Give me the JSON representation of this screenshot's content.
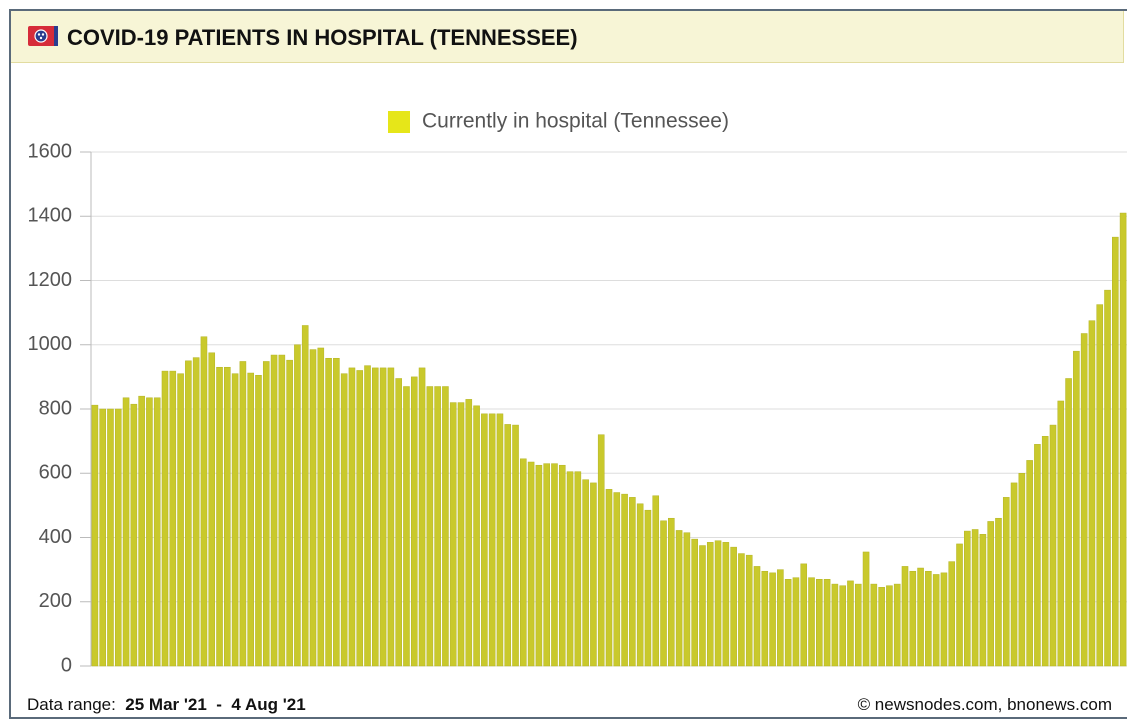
{
  "header": {
    "title": "COVID-19 PATIENTS IN HOSPITAL (TENNESSEE)"
  },
  "chart_data": {
    "type": "bar",
    "series": [
      {
        "name": "Currently in hospital (Tennessee)",
        "color": "#c9c92c",
        "legend_color": "#e6e619",
        "values": [
          812,
          800,
          800,
          800,
          835,
          815,
          840,
          835,
          835,
          918,
          918,
          910,
          950,
          960,
          1025,
          975,
          930,
          930,
          910,
          948,
          912,
          905,
          948,
          968,
          968,
          952,
          1000,
          1060,
          985,
          990,
          958,
          958,
          910,
          928,
          920,
          935,
          928,
          928,
          928,
          895,
          870,
          900,
          928,
          870,
          870,
          870,
          820,
          820,
          830,
          810,
          785,
          785,
          785,
          752,
          750,
          645,
          635,
          625,
          630,
          630,
          625,
          605,
          605,
          580,
          570,
          720,
          550,
          540,
          535,
          525,
          505,
          485,
          530,
          452,
          460,
          422,
          415,
          395,
          375,
          385,
          390,
          385,
          370,
          350,
          345,
          310,
          295,
          290,
          300,
          270,
          275,
          318,
          275,
          270,
          270,
          255,
          250,
          265,
          255,
          355,
          255,
          245,
          250,
          255,
          310,
          295,
          305,
          295,
          285,
          290,
          325,
          380,
          420,
          425,
          410,
          450,
          460,
          525,
          570,
          600,
          640,
          690,
          715,
          750,
          825,
          895,
          980,
          1035,
          1075,
          1125,
          1170,
          1335,
          1410
        ]
      }
    ],
    "ylim": [
      0,
      1600
    ],
    "yticks": [
      0,
      200,
      400,
      600,
      800,
      1000,
      1200,
      1400,
      1600
    ],
    "grid": true
  },
  "footer": {
    "range_label": "Data range:",
    "start": "25 Mar '21",
    "separator": "-",
    "end": "4 Aug '21",
    "credit": "© newsnodes.com, bnonews.com"
  }
}
